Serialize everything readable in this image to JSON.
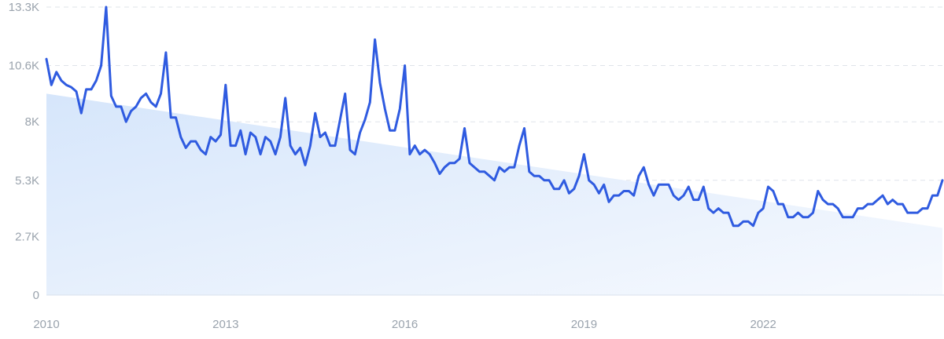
{
  "chart_data": {
    "type": "line",
    "title": "",
    "xlabel": "",
    "ylabel": "",
    "x_ticks": [
      "2010",
      "2013",
      "2016",
      "2019",
      "2022"
    ],
    "y_ticks": [
      "0",
      "2.7K",
      "5.3K",
      "8K",
      "10.6K",
      "13.3K"
    ],
    "y_tick_values": [
      0,
      2700,
      5300,
      8000,
      10600,
      13300
    ],
    "ylim": [
      0,
      13300
    ],
    "xlim": [
      "2010-01",
      "2024-12"
    ],
    "grid": true,
    "legend": "none",
    "trend": {
      "from": {
        "x": "2010-01",
        "y": 9300
      },
      "to": {
        "x": "2024-12",
        "y": 3100
      }
    },
    "series": [
      {
        "color": "#2f5be0",
        "points": [
          [
            "2010-01",
            10900
          ],
          [
            "2010-02",
            9700
          ],
          [
            "2010-03",
            10300
          ],
          [
            "2010-04",
            9900
          ],
          [
            "2010-05",
            9700
          ],
          [
            "2010-06",
            9600
          ],
          [
            "2010-07",
            9400
          ],
          [
            "2010-08",
            8400
          ],
          [
            "2010-09",
            9500
          ],
          [
            "2010-10",
            9500
          ],
          [
            "2010-11",
            9900
          ],
          [
            "2010-12",
            10600
          ],
          [
            "2011-01",
            13300
          ],
          [
            "2011-02",
            9200
          ],
          [
            "2011-03",
            8700
          ],
          [
            "2011-04",
            8700
          ],
          [
            "2011-05",
            8000
          ],
          [
            "2011-06",
            8500
          ],
          [
            "2011-07",
            8700
          ],
          [
            "2011-08",
            9100
          ],
          [
            "2011-09",
            9300
          ],
          [
            "2011-10",
            8900
          ],
          [
            "2011-11",
            8700
          ],
          [
            "2011-12",
            9300
          ],
          [
            "2012-01",
            11200
          ],
          [
            "2012-02",
            8200
          ],
          [
            "2012-03",
            8200
          ],
          [
            "2012-04",
            7300
          ],
          [
            "2012-05",
            6800
          ],
          [
            "2012-06",
            7100
          ],
          [
            "2012-07",
            7100
          ],
          [
            "2012-08",
            6700
          ],
          [
            "2012-09",
            6500
          ],
          [
            "2012-10",
            7300
          ],
          [
            "2012-11",
            7100
          ],
          [
            "2012-12",
            7400
          ],
          [
            "2013-01",
            9700
          ],
          [
            "2013-02",
            6900
          ],
          [
            "2013-03",
            6900
          ],
          [
            "2013-04",
            7600
          ],
          [
            "2013-05",
            6500
          ],
          [
            "2013-06",
            7500
          ],
          [
            "2013-07",
            7300
          ],
          [
            "2013-08",
            6500
          ],
          [
            "2013-09",
            7300
          ],
          [
            "2013-10",
            7100
          ],
          [
            "2013-11",
            6500
          ],
          [
            "2013-12",
            7300
          ],
          [
            "2014-01",
            9100
          ],
          [
            "2014-02",
            6900
          ],
          [
            "2014-03",
            6500
          ],
          [
            "2014-04",
            6800
          ],
          [
            "2014-05",
            6000
          ],
          [
            "2014-06",
            6900
          ],
          [
            "2014-07",
            8400
          ],
          [
            "2014-08",
            7300
          ],
          [
            "2014-09",
            7500
          ],
          [
            "2014-10",
            6900
          ],
          [
            "2014-11",
            6900
          ],
          [
            "2014-12",
            8100
          ],
          [
            "2015-01",
            9300
          ],
          [
            "2015-02",
            6700
          ],
          [
            "2015-03",
            6500
          ],
          [
            "2015-04",
            7500
          ],
          [
            "2015-05",
            8100
          ],
          [
            "2015-06",
            8900
          ],
          [
            "2015-07",
            11800
          ],
          [
            "2015-08",
            9800
          ],
          [
            "2015-09",
            8600
          ],
          [
            "2015-10",
            7600
          ],
          [
            "2015-11",
            7600
          ],
          [
            "2015-12",
            8600
          ],
          [
            "2016-01",
            10600
          ],
          [
            "2016-02",
            6500
          ],
          [
            "2016-03",
            6900
          ],
          [
            "2016-04",
            6500
          ],
          [
            "2016-05",
            6700
          ],
          [
            "2016-06",
            6500
          ],
          [
            "2016-07",
            6100
          ],
          [
            "2016-08",
            5600
          ],
          [
            "2016-09",
            5900
          ],
          [
            "2016-10",
            6100
          ],
          [
            "2016-11",
            6100
          ],
          [
            "2016-12",
            6300
          ],
          [
            "2017-01",
            7700
          ],
          [
            "2017-02",
            6100
          ],
          [
            "2017-03",
            5900
          ],
          [
            "2017-04",
            5700
          ],
          [
            "2017-05",
            5700
          ],
          [
            "2017-06",
            5500
          ],
          [
            "2017-07",
            5300
          ],
          [
            "2017-08",
            5900
          ],
          [
            "2017-09",
            5700
          ],
          [
            "2017-10",
            5900
          ],
          [
            "2017-11",
            5900
          ],
          [
            "2017-12",
            6900
          ],
          [
            "2018-01",
            7700
          ],
          [
            "2018-02",
            5700
          ],
          [
            "2018-03",
            5500
          ],
          [
            "2018-04",
            5500
          ],
          [
            "2018-05",
            5300
          ],
          [
            "2018-06",
            5300
          ],
          [
            "2018-07",
            4900
          ],
          [
            "2018-08",
            4900
          ],
          [
            "2018-09",
            5300
          ],
          [
            "2018-10",
            4700
          ],
          [
            "2018-11",
            4900
          ],
          [
            "2018-12",
            5500
          ],
          [
            "2019-01",
            6500
          ],
          [
            "2019-02",
            5300
          ],
          [
            "2019-03",
            5100
          ],
          [
            "2019-04",
            4700
          ],
          [
            "2019-05",
            5100
          ],
          [
            "2019-06",
            4300
          ],
          [
            "2019-07",
            4600
          ],
          [
            "2019-08",
            4600
          ],
          [
            "2019-09",
            4800
          ],
          [
            "2019-10",
            4800
          ],
          [
            "2019-11",
            4600
          ],
          [
            "2019-12",
            5500
          ],
          [
            "2020-01",
            5900
          ],
          [
            "2020-02",
            5100
          ],
          [
            "2020-03",
            4600
          ],
          [
            "2020-04",
            5100
          ],
          [
            "2020-05",
            5100
          ],
          [
            "2020-06",
            5100
          ],
          [
            "2020-07",
            4600
          ],
          [
            "2020-08",
            4400
          ],
          [
            "2020-09",
            4600
          ],
          [
            "2020-10",
            5000
          ],
          [
            "2020-11",
            4400
          ],
          [
            "2020-12",
            4400
          ],
          [
            "2021-01",
            5000
          ],
          [
            "2021-02",
            4000
          ],
          [
            "2021-03",
            3800
          ],
          [
            "2021-04",
            4000
          ],
          [
            "2021-05",
            3800
          ],
          [
            "2021-06",
            3800
          ],
          [
            "2021-07",
            3200
          ],
          [
            "2021-08",
            3200
          ],
          [
            "2021-09",
            3400
          ],
          [
            "2021-10",
            3400
          ],
          [
            "2021-11",
            3200
          ],
          [
            "2021-12",
            3800
          ],
          [
            "2022-01",
            4000
          ],
          [
            "2022-02",
            5000
          ],
          [
            "2022-03",
            4800
          ],
          [
            "2022-04",
            4200
          ],
          [
            "2022-05",
            4200
          ],
          [
            "2022-06",
            3600
          ],
          [
            "2022-07",
            3600
          ],
          [
            "2022-08",
            3800
          ],
          [
            "2022-09",
            3600
          ],
          [
            "2022-10",
            3600
          ],
          [
            "2022-11",
            3800
          ],
          [
            "2022-12",
            4800
          ],
          [
            "2023-01",
            4400
          ],
          [
            "2023-02",
            4200
          ],
          [
            "2023-03",
            4200
          ],
          [
            "2023-04",
            4000
          ],
          [
            "2023-05",
            3600
          ],
          [
            "2023-06",
            3600
          ],
          [
            "2023-07",
            3600
          ],
          [
            "2023-08",
            4000
          ],
          [
            "2023-09",
            4000
          ],
          [
            "2023-10",
            4200
          ],
          [
            "2023-11",
            4200
          ],
          [
            "2023-12",
            4400
          ],
          [
            "2024-01",
            4600
          ],
          [
            "2024-02",
            4200
          ],
          [
            "2024-03",
            4400
          ],
          [
            "2024-04",
            4200
          ],
          [
            "2024-05",
            4200
          ],
          [
            "2024-06",
            3800
          ],
          [
            "2024-07",
            3800
          ],
          [
            "2024-08",
            3800
          ],
          [
            "2024-09",
            4000
          ],
          [
            "2024-10",
            4000
          ],
          [
            "2024-11",
            4600
          ],
          [
            "2024-12",
            4600
          ],
          [
            "2025-01",
            5300
          ]
        ]
      }
    ]
  }
}
